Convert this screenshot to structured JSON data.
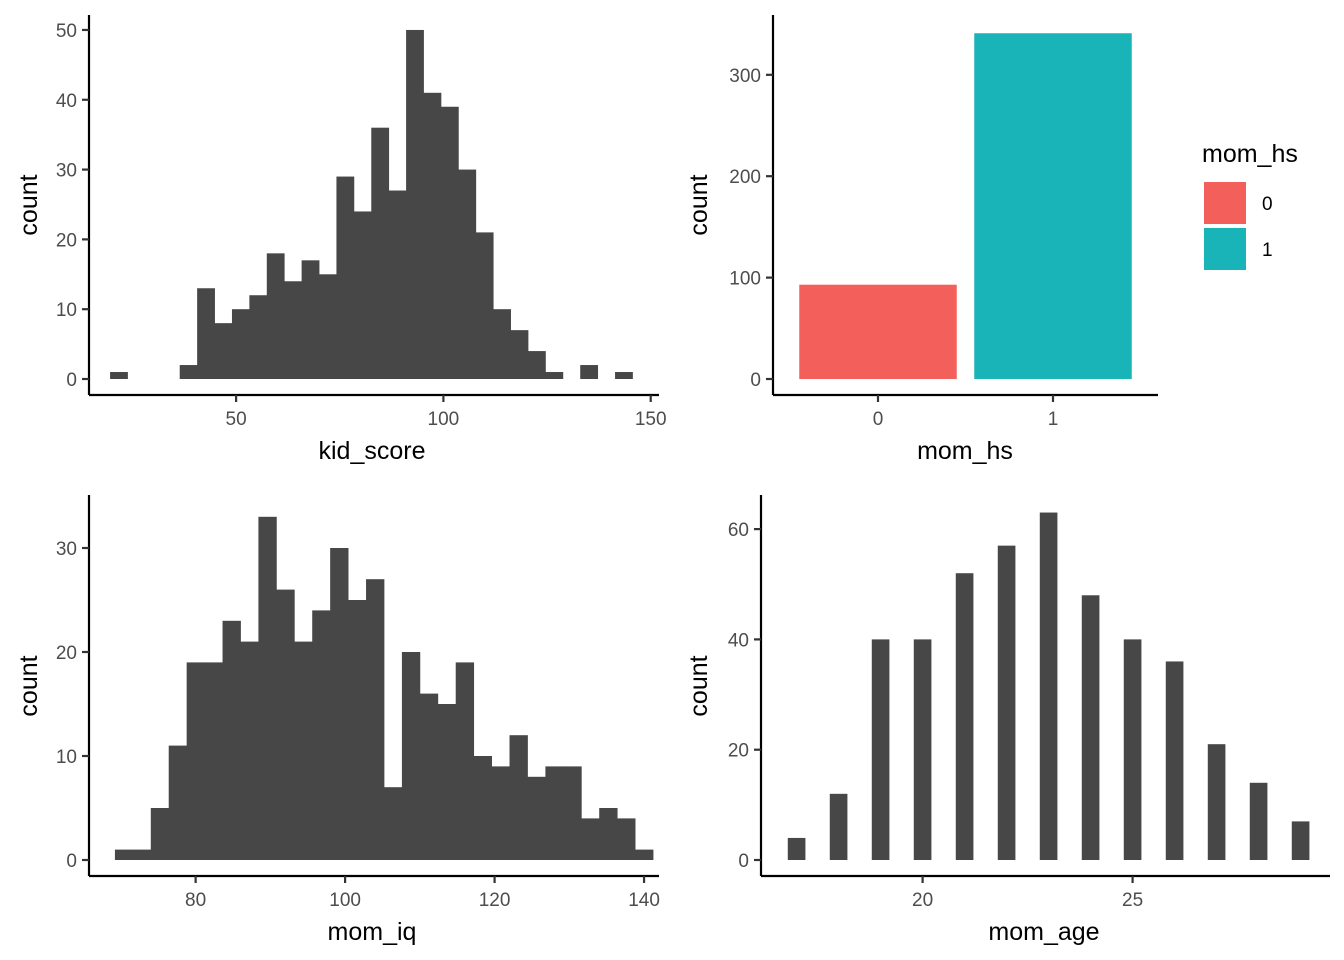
{
  "chart_data": [
    {
      "type": "bar",
      "subtype": "histogram",
      "xlabel": "kid_score",
      "ylabel": "count",
      "xlim": [
        15,
        152
      ],
      "ylim": [
        0,
        52
      ],
      "xticks": [
        50,
        100,
        150
      ],
      "yticks": [
        0,
        10,
        20,
        30,
        40,
        50
      ],
      "bin_width": 4.2,
      "bin_starts": [
        19.6,
        23.8,
        28.0,
        32.2,
        36.4,
        40.6,
        44.8,
        49.0,
        53.2,
        57.4,
        61.6,
        65.8,
        70.0,
        74.2,
        78.4,
        82.6,
        86.8,
        91.0,
        95.2,
        99.4,
        103.6,
        107.8,
        112.0,
        116.2,
        120.4,
        124.6,
        128.8,
        133.0,
        137.2,
        141.4,
        145.6
      ],
      "values": [
        1,
        0,
        0,
        0,
        2,
        13,
        8,
        10,
        12,
        18,
        14,
        17,
        15,
        29,
        24,
        36,
        27,
        50,
        41,
        39,
        30,
        21,
        10,
        7,
        4,
        1,
        0,
        2,
        0,
        1
      ],
      "fill": "#474747",
      "grid": false
    },
    {
      "type": "bar",
      "categories": [
        "0",
        "1"
      ],
      "values": [
        93,
        341
      ],
      "colors": [
        "#F3605C",
        "#19B4B8"
      ],
      "xlabel": "mom_hs",
      "ylabel": "count",
      "ylim": [
        0,
        358
      ],
      "yticks": [
        0,
        100,
        200,
        300
      ],
      "legend": {
        "title": "mom_hs",
        "position": "right",
        "entries": [
          "0",
          "1"
        ]
      },
      "grid": false
    },
    {
      "type": "bar",
      "subtype": "histogram",
      "xlabel": "mom_iq",
      "ylabel": "count",
      "xlim": [
        66,
        142
      ],
      "ylim": [
        0,
        35
      ],
      "xticks": [
        80,
        100,
        120,
        140
      ],
      "yticks": [
        0,
        10,
        20,
        30
      ],
      "bin_start": 69.2,
      "bin_width": 2.4,
      "values": [
        1,
        1,
        5,
        11,
        19,
        19,
        23,
        21,
        33,
        26,
        21,
        24,
        30,
        25,
        27,
        7,
        20,
        16,
        15,
        19,
        10,
        9,
        12,
        8,
        9,
        9,
        4,
        5,
        4,
        1
      ],
      "fill": "#474747",
      "grid": false
    },
    {
      "type": "bar",
      "subtype": "histogram",
      "xlabel": "mom_age",
      "ylabel": "count",
      "xlim": [
        16.2,
        29.7
      ],
      "ylim": [
        0,
        66
      ],
      "xticks": [
        20,
        25
      ],
      "yticks": [
        0,
        20,
        40,
        60
      ],
      "x": [
        17,
        18,
        19,
        20,
        21,
        22,
        23,
        24,
        25,
        26,
        27,
        28,
        29
      ],
      "values": [
        4,
        12,
        40,
        40,
        52,
        57,
        63,
        48,
        40,
        36,
        21,
        14,
        7
      ],
      "bar_width": 0.42,
      "fill": "#474747",
      "grid": false
    }
  ]
}
